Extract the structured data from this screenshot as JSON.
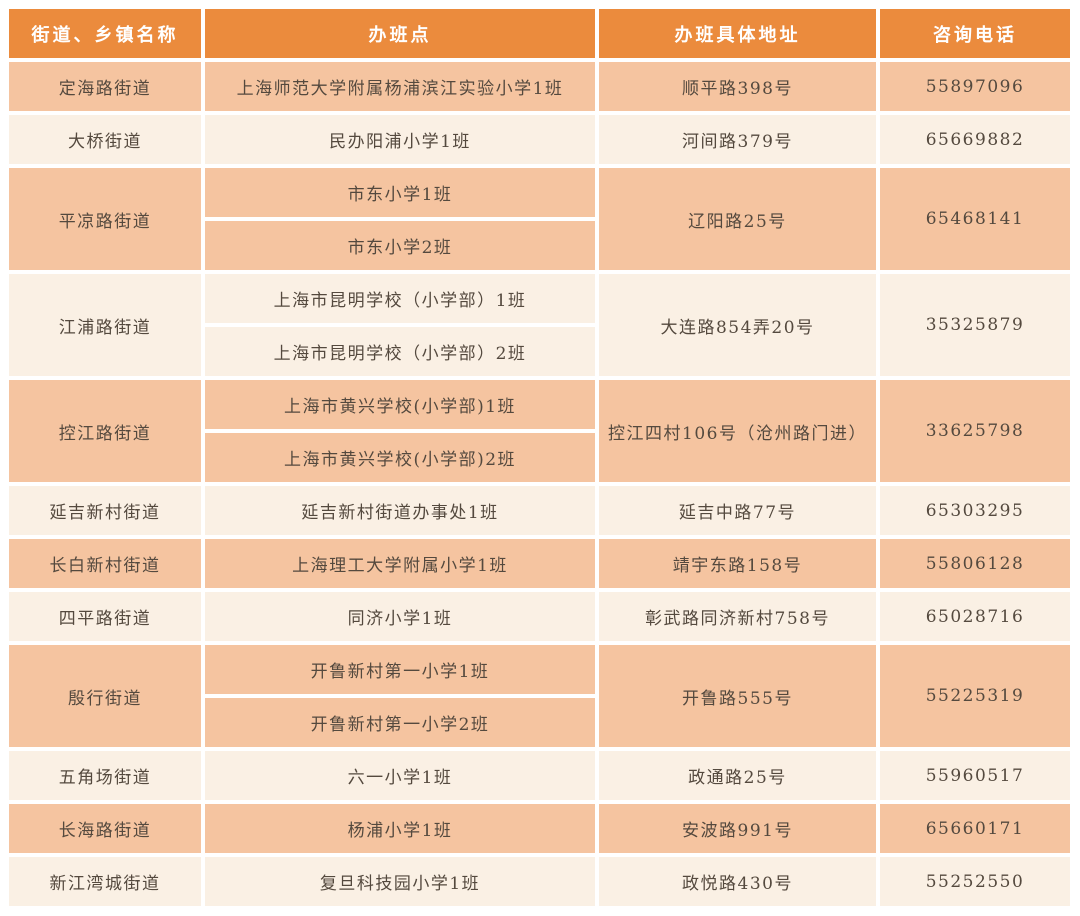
{
  "table": {
    "headers": [
      "街道、乡镇名称",
      "办班点",
      "办班具体地址",
      "咨询电话"
    ],
    "rows": [
      {
        "street": "定海路街道",
        "classes": [
          "上海师范大学附属杨浦滨江实验小学1班"
        ],
        "address": "顺平路398号",
        "phone": "55897096"
      },
      {
        "street": "大桥街道",
        "classes": [
          "民办阳浦小学1班"
        ],
        "address": "河间路379号",
        "phone": "65669882"
      },
      {
        "street": "平凉路街道",
        "classes": [
          "市东小学1班",
          "市东小学2班"
        ],
        "address": "辽阳路25号",
        "phone": "65468141"
      },
      {
        "street": "江浦路街道",
        "classes": [
          "上海市昆明学校（小学部）1班",
          "上海市昆明学校（小学部）2班"
        ],
        "address": "大连路854弄20号",
        "phone": "35325879"
      },
      {
        "street": "控江路街道",
        "classes": [
          "上海市黄兴学校(小学部)1班",
          "上海市黄兴学校(小学部)2班"
        ],
        "address": "控江四村106号（沧州路门进）",
        "phone": "33625798"
      },
      {
        "street": "延吉新村街道",
        "classes": [
          "延吉新村街道办事处1班"
        ],
        "address": "延吉中路77号",
        "phone": "65303295"
      },
      {
        "street": "长白新村街道",
        "classes": [
          "上海理工大学附属小学1班"
        ],
        "address": "靖宇东路158号",
        "phone": "55806128"
      },
      {
        "street": "四平路街道",
        "classes": [
          "同济小学1班"
        ],
        "address": "彰武路同济新村758号",
        "phone": "65028716"
      },
      {
        "street": "殷行街道",
        "classes": [
          "开鲁新村第一小学1班",
          "开鲁新村第一小学2班"
        ],
        "address": "开鲁路555号",
        "phone": "55225319"
      },
      {
        "street": "五角场街道",
        "classes": [
          "六一小学1班"
        ],
        "address": "政通路25号",
        "phone": "55960517"
      },
      {
        "street": "长海路街道",
        "classes": [
          "杨浦小学1班"
        ],
        "address": "安波路991号",
        "phone": "65660171"
      },
      {
        "street": "新江湾城街道",
        "classes": [
          "复旦科技园小学1班"
        ],
        "address": "政悦路430号",
        "phone": "55252550"
      }
    ]
  },
  "colors": {
    "header_bg": "#EB8B3D",
    "header_text": "#FFFFFF",
    "row_peach": "#F5C4A0",
    "row_cream": "#FAF0E4",
    "body_text": "#54493E"
  }
}
